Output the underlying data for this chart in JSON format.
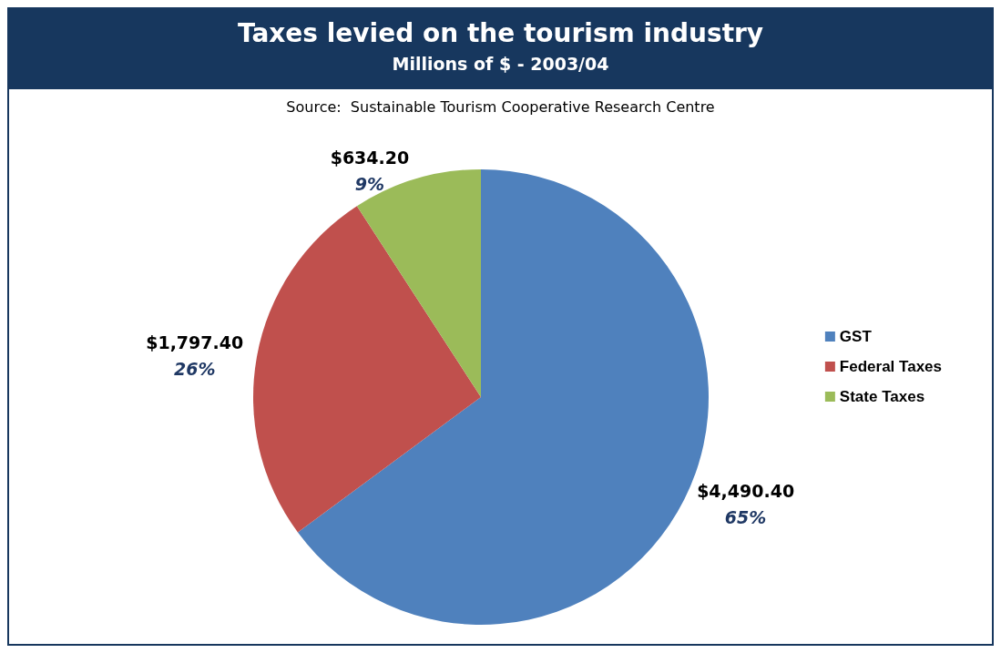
{
  "chart_data": {
    "type": "pie",
    "title": "Taxes levied on the tourism industry",
    "subtitle": "Millions of $ - 2003/04",
    "annotations": [
      "Source:  Sustainable Tourism Cooperative Research Centre"
    ],
    "categories": [
      "GST",
      "Federal Taxes",
      "State Taxes"
    ],
    "values": [
      4490.4,
      1797.4,
      634.2
    ],
    "colors": [
      "#4f81bd",
      "#c0504d",
      "#9bbb59"
    ],
    "value_labels": [
      "$4,490.40\n65%",
      "$1,797.40\n26%",
      "$634.20\n9%"
    ],
    "legend": "right"
  }
}
